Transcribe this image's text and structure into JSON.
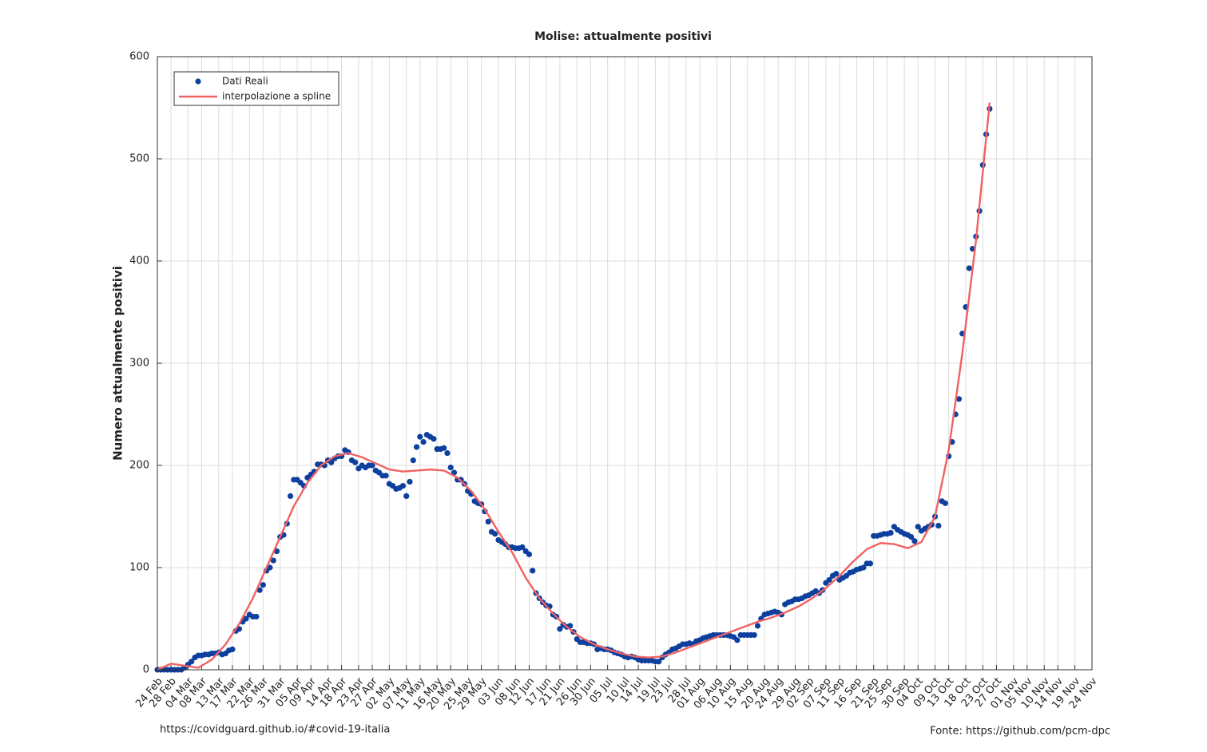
{
  "chart_data": {
    "type": "scatter",
    "title": "Molise: attualmente positivi",
    "ylabel": "Numero attualmente positivi",
    "footer_left": "https://covidguard.github.io/#covid-19-italia",
    "footer_right": "Fonte: https://github.com/pcm-dpc",
    "xlim": [
      0,
      274
    ],
    "ylim": [
      0,
      600
    ],
    "grid": true,
    "legend": "upper left",
    "yticks": [
      0,
      100,
      200,
      300,
      400,
      500,
      600
    ],
    "xticks": [
      {
        "value": 0,
        "label": "24 Feb"
      },
      {
        "value": 4,
        "label": "28 Feb"
      },
      {
        "value": 9,
        "label": "04 Mar"
      },
      {
        "value": 13,
        "label": "08 Mar"
      },
      {
        "value": 18,
        "label": "13 Mar"
      },
      {
        "value": 22,
        "label": "17 Mar"
      },
      {
        "value": 27,
        "label": "22 Mar"
      },
      {
        "value": 31,
        "label": "26 Mar"
      },
      {
        "value": 36,
        "label": "31 Mar"
      },
      {
        "value": 41,
        "label": "05 Apr"
      },
      {
        "value": 45,
        "label": "09 Apr"
      },
      {
        "value": 50,
        "label": "14 Apr"
      },
      {
        "value": 54,
        "label": "18 Apr"
      },
      {
        "value": 59,
        "label": "23 Apr"
      },
      {
        "value": 63,
        "label": "27 Apr"
      },
      {
        "value": 68,
        "label": "02 May"
      },
      {
        "value": 73,
        "label": "07 May"
      },
      {
        "value": 77,
        "label": "11 May"
      },
      {
        "value": 82,
        "label": "16 May"
      },
      {
        "value": 86,
        "label": "20 May"
      },
      {
        "value": 91,
        "label": "25 May"
      },
      {
        "value": 95,
        "label": "29 May"
      },
      {
        "value": 100,
        "label": "03 Jun"
      },
      {
        "value": 105,
        "label": "08 Jun"
      },
      {
        "value": 109,
        "label": "12 Jun"
      },
      {
        "value": 114,
        "label": "17 Jun"
      },
      {
        "value": 118,
        "label": "21 Jun"
      },
      {
        "value": 123,
        "label": "26 Jun"
      },
      {
        "value": 127,
        "label": "30 Jun"
      },
      {
        "value": 132,
        "label": "05 Jul"
      },
      {
        "value": 137,
        "label": "10 Jul"
      },
      {
        "value": 141,
        "label": "14 Jul"
      },
      {
        "value": 146,
        "label": "19 Jul"
      },
      {
        "value": 150,
        "label": "23 Jul"
      },
      {
        "value": 155,
        "label": "28 Jul"
      },
      {
        "value": 159,
        "label": "01 Aug"
      },
      {
        "value": 164,
        "label": "06 Aug"
      },
      {
        "value": 168,
        "label": "10 Aug"
      },
      {
        "value": 173,
        "label": "15 Aug"
      },
      {
        "value": 178,
        "label": "20 Aug"
      },
      {
        "value": 182,
        "label": "24 Aug"
      },
      {
        "value": 187,
        "label": "29 Aug"
      },
      {
        "value": 191,
        "label": "02 Sep"
      },
      {
        "value": 196,
        "label": "07 Sep"
      },
      {
        "value": 200,
        "label": "11 Sep"
      },
      {
        "value": 205,
        "label": "16 Sep"
      },
      {
        "value": 210,
        "label": "21 Sep"
      },
      {
        "value": 214,
        "label": "25 Sep"
      },
      {
        "value": 219,
        "label": "30 Sep"
      },
      {
        "value": 223,
        "label": "04 Oct"
      },
      {
        "value": 228,
        "label": "09 Oct"
      },
      {
        "value": 232,
        "label": "13 Oct"
      },
      {
        "value": 237,
        "label": "18 Oct"
      },
      {
        "value": 242,
        "label": "23 Oct"
      },
      {
        "value": 246,
        "label": "27 Oct"
      },
      {
        "value": 251,
        "label": "01 Nov"
      },
      {
        "value": 255,
        "label": "05 Nov"
      },
      {
        "value": 260,
        "label": "10 Nov"
      },
      {
        "value": 264,
        "label": "14 Nov"
      },
      {
        "value": 269,
        "label": "19 Nov"
      },
      {
        "value": 274,
        "label": "24 Nov"
      }
    ],
    "series": [
      {
        "name": "Dati Reali",
        "style": "markers",
        "color": "#0d3f9e",
        "x": [
          0,
          1,
          2,
          3,
          4,
          5,
          6,
          7,
          8,
          9,
          10,
          11,
          12,
          13,
          14,
          15,
          16,
          17,
          18,
          19,
          20,
          21,
          22,
          23,
          24,
          25,
          26,
          27,
          28,
          29,
          30,
          31,
          32,
          33,
          34,
          35,
          36,
          37,
          38,
          39,
          40,
          41,
          42,
          43,
          44,
          45,
          46,
          47,
          48,
          49,
          50,
          51,
          52,
          53,
          54,
          55,
          56,
          57,
          58,
          59,
          60,
          61,
          62,
          63,
          64,
          65,
          66,
          67,
          68,
          69,
          70,
          71,
          72,
          73,
          74,
          75,
          76,
          77,
          78,
          79,
          80,
          81,
          82,
          83,
          84,
          85,
          86,
          87,
          88,
          89,
          90,
          91,
          92,
          93,
          94,
          95,
          96,
          97,
          98,
          99,
          100,
          101,
          102,
          103,
          104,
          105,
          106,
          107,
          108,
          109,
          110,
          111,
          112,
          113,
          114,
          115,
          116,
          117,
          118,
          119,
          120,
          121,
          122,
          123,
          124,
          125,
          126,
          127,
          128,
          129,
          130,
          131,
          132,
          133,
          134,
          135,
          136,
          137,
          138,
          139,
          140,
          141,
          142,
          143,
          144,
          145,
          146,
          147,
          148,
          149,
          150,
          151,
          152,
          153,
          154,
          155,
          156,
          157,
          158,
          159,
          160,
          161,
          162,
          163,
          164,
          165,
          166,
          167,
          168,
          169,
          170,
          171,
          172,
          173,
          174,
          175,
          176,
          177,
          178,
          179,
          180,
          181,
          182,
          183,
          184,
          185,
          186,
          187,
          188,
          189,
          190,
          191,
          192,
          193,
          194,
          195,
          196,
          197,
          198,
          199,
          200,
          201,
          202,
          203,
          204,
          205,
          206,
          207,
          208,
          209,
          210,
          211,
          212,
          213,
          214,
          215,
          216,
          217,
          218,
          219,
          220,
          221,
          222,
          223,
          224,
          225,
          226,
          227,
          228,
          229,
          230,
          231,
          232,
          233,
          234,
          235,
          236,
          237,
          238,
          239,
          240,
          241,
          242,
          243,
          244
        ],
        "values": [
          0,
          0,
          0,
          0,
          0,
          0,
          0,
          0,
          2,
          5,
          8,
          12,
          14,
          14,
          15,
          15,
          16,
          16,
          17,
          15,
          16,
          19,
          20,
          38,
          40,
          47,
          50,
          54,
          52,
          52,
          78,
          83,
          97,
          100,
          107,
          116,
          130,
          132,
          143,
          170,
          186,
          186,
          183,
          180,
          188,
          191,
          194,
          201,
          201,
          200,
          205,
          203,
          207,
          209,
          209,
          215,
          213,
          205,
          203,
          197,
          200,
          198,
          200,
          200,
          195,
          193,
          190,
          190,
          182,
          180,
          177,
          178,
          180,
          170,
          184,
          205,
          218,
          228,
          223,
          230,
          228,
          226,
          216,
          216,
          217,
          212,
          198,
          193,
          186,
          186,
          182,
          175,
          172,
          165,
          163,
          162,
          155,
          145,
          135,
          133,
          127,
          125,
          123,
          120,
          120,
          119,
          119,
          120,
          116,
          113,
          97,
          75,
          70,
          66,
          63,
          62,
          54,
          52,
          40,
          44,
          42,
          43,
          37,
          30,
          27,
          27,
          26,
          26,
          25,
          20,
          21,
          20,
          20,
          19,
          17,
          16,
          15,
          13,
          12,
          13,
          12,
          10,
          9,
          9,
          9,
          9,
          8,
          8,
          12,
          15,
          17,
          20,
          21,
          23,
          25,
          25,
          26,
          25,
          28,
          29,
          31,
          32,
          33,
          34,
          34,
          34,
          34,
          34,
          33,
          32,
          29,
          34,
          34,
          34,
          34,
          34,
          43,
          50,
          54,
          55,
          56,
          57,
          56,
          54,
          64,
          66,
          67,
          69,
          69,
          70,
          72,
          73,
          75,
          77,
          75,
          78,
          85,
          88,
          92,
          94,
          88,
          90,
          92,
          95,
          96,
          98,
          99,
          100,
          104,
          104,
          131,
          131,
          132,
          133,
          133,
          134,
          140,
          137,
          135,
          133,
          132,
          130,
          126,
          140,
          136,
          138,
          140,
          142,
          150,
          141,
          165,
          163,
          209,
          223,
          250,
          265,
          329,
          355,
          393,
          412,
          424,
          449,
          494,
          524,
          549
        ]
      },
      {
        "name": "interpolazione a spline",
        "style": "line",
        "color": "#f06262",
        "x": [
          0,
          4,
          8,
          12,
          16,
          20,
          24,
          28,
          32,
          36,
          40,
          44,
          48,
          52,
          56,
          60,
          64,
          68,
          72,
          76,
          80,
          84,
          88,
          92,
          96,
          100,
          104,
          108,
          112,
          116,
          120,
          124,
          128,
          132,
          136,
          140,
          144,
          148,
          152,
          156,
          160,
          164,
          168,
          172,
          176,
          180,
          184,
          188,
          192,
          196,
          200,
          204,
          208,
          212,
          216,
          220,
          224,
          228,
          232,
          236,
          240,
          244
        ],
        "values": [
          0,
          6,
          4,
          2,
          10,
          25,
          45,
          70,
          100,
          130,
          160,
          183,
          200,
          209,
          212,
          208,
          202,
          196,
          194,
          195,
          196,
          195,
          188,
          175,
          157,
          135,
          115,
          90,
          70,
          55,
          42,
          32,
          25,
          20,
          16,
          13,
          12,
          13,
          17,
          22,
          27,
          32,
          37,
          42,
          47,
          51,
          56,
          62,
          70,
          80,
          92,
          106,
          118,
          124,
          123,
          119,
          125,
          150,
          215,
          310,
          420,
          555
        ]
      }
    ]
  }
}
